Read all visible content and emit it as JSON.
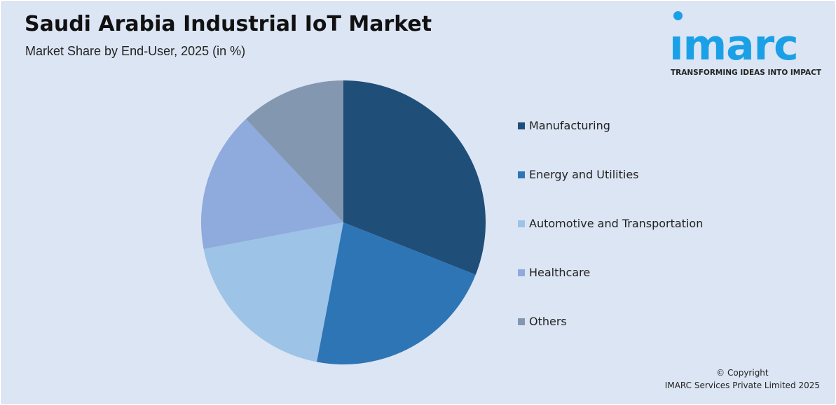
{
  "chart_data": {
    "type": "pie",
    "title": "Saudi Arabia Industrial IoT Market",
    "subtitle": "Market Share by End-User, 2025 (in %)",
    "categories": [
      "Manufacturing",
      "Energy and Utilities",
      "Automotive and Transportation",
      "Healthcare",
      "Others"
    ],
    "values": [
      31,
      22,
      19,
      16,
      12
    ],
    "colors": [
      "#1f4e79",
      "#2e75b6",
      "#9dc3e6",
      "#8faadc",
      "#8497b0"
    ],
    "legend_position": "right",
    "start_angle": "top, clockwise"
  },
  "logo": {
    "word": "ımarc",
    "tagline": "TRANSFORMING IDEAS INTO IMPACT",
    "color": "#1aa0e6"
  },
  "footer": {
    "line1": "© Copyright",
    "line2": "IMARC Services Private Limited 2025"
  },
  "colors": {
    "background": "#dce5f3"
  }
}
